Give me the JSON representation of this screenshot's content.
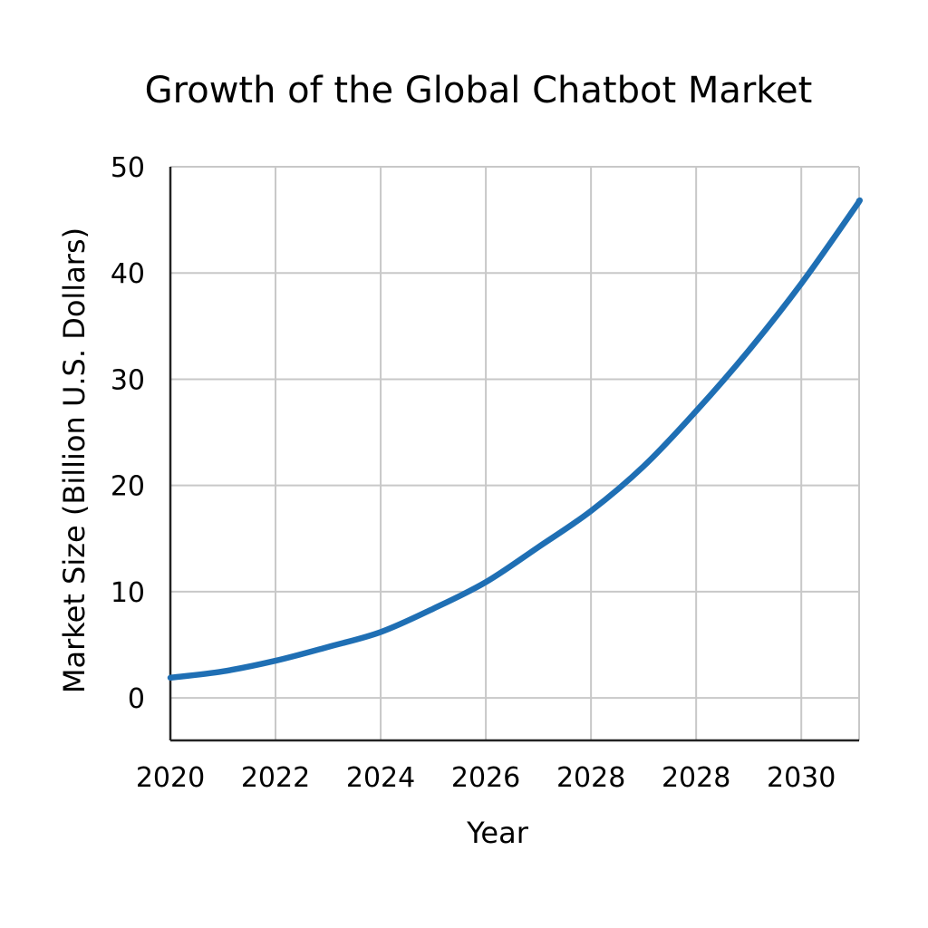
{
  "chart_data": {
    "type": "line",
    "title": "Growth of the Global Chatbot Market",
    "xlabel": "Year",
    "ylabel": "Market Size (Billion U.S. Dollars)",
    "x_tick_labels": [
      "2020",
      "2022",
      "2024",
      "2026",
      "2028",
      "2028",
      "2030"
    ],
    "y_tick_labels": [
      "0",
      "10",
      "20",
      "30",
      "40",
      "50"
    ],
    "y_ticks": [
      0,
      10,
      20,
      30,
      40,
      50
    ],
    "ylim": [
      -4,
      50
    ],
    "xlim": [
      2020,
      2033.1
    ],
    "grid": true,
    "series": [
      {
        "color": "#1f6fb4",
        "x": [
          2020,
          2021,
          2022,
          2023,
          2024,
          2025,
          2026,
          2027,
          2028,
          2029,
          2030,
          2031,
          2032,
          2033,
          2033.1
        ],
        "y": [
          1.9,
          2.5,
          3.5,
          4.8,
          6.2,
          8.4,
          10.9,
          14.2,
          17.6,
          21.8,
          27.0,
          32.7,
          39.0,
          46.0,
          46.8
        ]
      }
    ]
  }
}
